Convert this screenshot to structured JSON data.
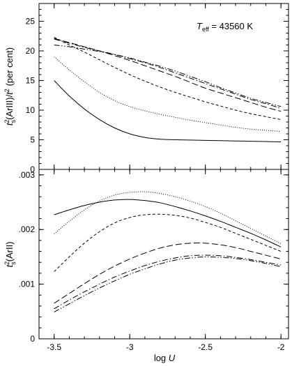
{
  "chart_data": [
    {
      "type": "line",
      "panel": "top",
      "ylabel_main": "t",
      "ylabel_sup1": "2",
      "ylabel_sub": "s",
      "ylabel_mid": "(ArIII)/",
      "ylabel_t": "t",
      "ylabel_sup2": "2",
      "ylabel_end": " (per cent)",
      "xlabel": "",
      "ylim": [
        0,
        28
      ],
      "yticks": [
        0,
        5,
        10,
        15,
        20,
        25
      ],
      "ytick_labels": [
        "0",
        "5",
        "10",
        "15",
        "20",
        "25"
      ],
      "annotation_T": "T",
      "annotation_sub": "eff",
      "annotation_value": " = 43560 K",
      "series": [
        {
          "style": "solid",
          "x": [
            -3.5,
            -3.4,
            -3.3,
            -3.2,
            -3.1,
            -3.0,
            -2.9,
            -2.8,
            -2.7,
            -2.6,
            -2.5,
            -2.4,
            -2.3,
            -2.2,
            -2.1,
            -2.0
          ],
          "y": [
            15.0,
            12.4,
            10.2,
            8.4,
            7.0,
            6.0,
            5.4,
            5.1,
            5.0,
            4.95,
            4.9,
            4.85,
            4.8,
            4.75,
            4.7,
            4.65
          ]
        },
        {
          "style": "dotted",
          "x": [
            -3.5,
            -3.4,
            -3.3,
            -3.2,
            -3.1,
            -3.0,
            -2.9,
            -2.8,
            -2.7,
            -2.6,
            -2.5,
            -2.4,
            -2.3,
            -2.2,
            -2.1,
            -2.0
          ],
          "y": [
            19.0,
            16.8,
            14.8,
            13.0,
            11.6,
            10.6,
            9.9,
            9.3,
            8.8,
            8.3,
            7.9,
            7.5,
            7.1,
            6.8,
            6.6,
            6.4
          ]
        },
        {
          "style": "dashed-short",
          "x": [
            -3.5,
            -3.4,
            -3.3,
            -3.2,
            -3.1,
            -3.0,
            -2.9,
            -2.8,
            -2.7,
            -2.6,
            -2.5,
            -2.4,
            -2.3,
            -2.2,
            -2.1,
            -2.0
          ],
          "y": [
            22.3,
            21.0,
            19.8,
            18.5,
            17.2,
            16.0,
            14.9,
            13.9,
            13.0,
            12.2,
            11.4,
            10.7,
            10.0,
            9.4,
            8.9,
            8.4
          ]
        },
        {
          "style": "dashed-long",
          "x": [
            -3.5,
            -3.4,
            -3.3,
            -3.2,
            -3.1,
            -3.0,
            -2.9,
            -2.8,
            -2.7,
            -2.6,
            -2.5,
            -2.4,
            -2.3,
            -2.2,
            -2.1,
            -2.0
          ],
          "y": [
            22.1,
            21.4,
            20.7,
            20.0,
            19.2,
            18.4,
            17.5,
            16.6,
            15.7,
            14.7,
            13.7,
            12.9,
            12.1,
            11.3,
            10.5,
            9.8
          ]
        },
        {
          "style": "dashdot",
          "x": [
            -3.5,
            -3.4,
            -3.3,
            -3.2,
            -3.1,
            -3.0,
            -2.9,
            -2.8,
            -2.7,
            -2.6,
            -2.5,
            -2.4,
            -2.3,
            -2.2,
            -2.1,
            -2.0
          ],
          "y": [
            22.0,
            21.3,
            20.6,
            20.0,
            19.4,
            18.7,
            18.0,
            17.2,
            16.3,
            15.4,
            14.5,
            13.6,
            12.7,
            11.8,
            11.1,
            10.3
          ]
        },
        {
          "style": "dashdotdot",
          "x": [
            -3.5,
            -3.4,
            -3.3,
            -3.2,
            -3.1,
            -3.0,
            -2.9,
            -2.8,
            -2.7,
            -2.6,
            -2.5,
            -2.4,
            -2.3,
            -2.2,
            -2.1,
            -2.0
          ],
          "y": [
            21.0,
            20.7,
            20.3,
            19.9,
            19.4,
            18.8,
            18.1,
            17.4,
            16.6,
            15.7,
            14.8,
            13.8,
            12.9,
            12.0,
            11.3,
            10.6
          ]
        }
      ]
    },
    {
      "type": "line",
      "panel": "bottom",
      "ylabel_main": "t",
      "ylabel_sup1": "2",
      "ylabel_sub": "s",
      "ylabel_end": "(ArII)",
      "xlabel_main": "log ",
      "xlabel_var": "U",
      "xlim": [
        -3.6,
        -1.95
      ],
      "xticks": [
        -3.5,
        -3.0,
        -2.5,
        -2.0
      ],
      "xtick_labels": [
        "-3.5",
        "-3",
        "-2.5",
        "-2"
      ],
      "ylim": [
        0,
        0.0031
      ],
      "yticks": [
        0,
        0.001,
        0.002,
        0.003
      ],
      "ytick_labels": [
        "0",
        ".001",
        ".002",
        ".003"
      ],
      "series": [
        {
          "style": "solid",
          "x": [
            -3.5,
            -3.4,
            -3.3,
            -3.2,
            -3.1,
            -3.0,
            -2.9,
            -2.8,
            -2.7,
            -2.6,
            -2.5,
            -2.4,
            -2.3,
            -2.2,
            -2.1,
            -2.0
          ],
          "y": [
            0.00227,
            0.00236,
            0.00244,
            0.0025,
            0.00254,
            0.00255,
            0.00253,
            0.00249,
            0.00242,
            0.00234,
            0.00225,
            0.00215,
            0.00204,
            0.00193,
            0.00181,
            0.00168
          ]
        },
        {
          "style": "dotted",
          "x": [
            -3.5,
            -3.4,
            -3.3,
            -3.2,
            -3.1,
            -3.0,
            -2.9,
            -2.8,
            -2.7,
            -2.6,
            -2.5,
            -2.4,
            -2.3,
            -2.2,
            -2.1,
            -2.0
          ],
          "y": [
            0.00192,
            0.00215,
            0.00236,
            0.00252,
            0.00263,
            0.00268,
            0.00269,
            0.00266,
            0.0026,
            0.00252,
            0.00242,
            0.0023,
            0.00216,
            0.00202,
            0.00188,
            0.00174
          ]
        },
        {
          "style": "dashed-short",
          "x": [
            -3.5,
            -3.4,
            -3.3,
            -3.2,
            -3.1,
            -3.0,
            -2.9,
            -2.8,
            -2.7,
            -2.6,
            -2.5,
            -2.4,
            -2.3,
            -2.2,
            -2.1,
            -2.0
          ],
          "y": [
            0.00123,
            0.0015,
            0.00175,
            0.00196,
            0.00212,
            0.00222,
            0.00227,
            0.00228,
            0.00226,
            0.00221,
            0.00213,
            0.00204,
            0.00193,
            0.00182,
            0.00171,
            0.0016
          ]
        },
        {
          "style": "dashed-long",
          "x": [
            -3.5,
            -3.4,
            -3.3,
            -3.2,
            -3.1,
            -3.0,
            -2.9,
            -2.8,
            -2.7,
            -2.6,
            -2.5,
            -2.4,
            -2.3,
            -2.2,
            -2.1,
            -2.0
          ],
          "y": [
            0.00065,
            0.00083,
            0.00101,
            0.00118,
            0.00133,
            0.00146,
            0.00157,
            0.00166,
            0.00172,
            0.00175,
            0.00175,
            0.00172,
            0.00167,
            0.0016,
            0.00153,
            0.00146
          ]
        },
        {
          "style": "dashdot",
          "x": [
            -3.5,
            -3.4,
            -3.3,
            -3.2,
            -3.1,
            -3.0,
            -2.9,
            -2.8,
            -2.7,
            -2.6,
            -2.5,
            -2.4,
            -2.3,
            -2.2,
            -2.1,
            -2.0
          ],
          "y": [
            0.00055,
            0.00071,
            0.00086,
            0.001,
            0.00113,
            0.00124,
            0.00134,
            0.00142,
            0.00148,
            0.00152,
            0.00153,
            0.00152,
            0.00149,
            0.00145,
            0.0014,
            0.00135
          ]
        },
        {
          "style": "dashdotdot",
          "x": [
            -3.5,
            -3.4,
            -3.3,
            -3.2,
            -3.1,
            -3.0,
            -2.9,
            -2.8,
            -2.7,
            -2.6,
            -2.5,
            -2.4,
            -2.3,
            -2.2,
            -2.1,
            -2.0
          ],
          "y": [
            0.00049,
            0.00064,
            0.00079,
            0.00093,
            0.00106,
            0.00118,
            0.00128,
            0.00137,
            0.00144,
            0.00148,
            0.0015,
            0.00149,
            0.00147,
            0.00143,
            0.00138,
            0.00132
          ]
        }
      ]
    }
  ]
}
